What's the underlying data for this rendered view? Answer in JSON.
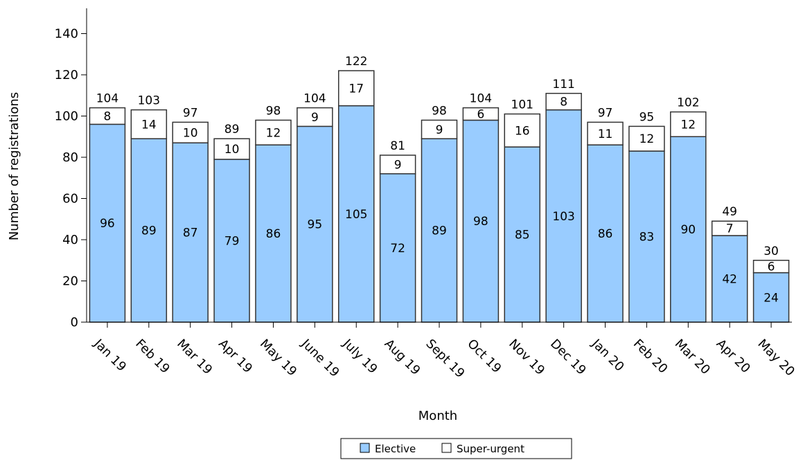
{
  "chart_data": {
    "type": "bar",
    "stacked": true,
    "title": "",
    "xlabel": "Month",
    "ylabel": "Number of registrations",
    "ylim": [
      0,
      150
    ],
    "yticks": [
      0,
      20,
      40,
      60,
      80,
      100,
      120,
      140
    ],
    "grid": false,
    "legend_position": "bottom",
    "categories": [
      "Jan 19",
      "Feb 19",
      "Mar 19",
      "Apr 19",
      "May 19",
      "June 19",
      "July 19",
      "Aug 19",
      "Sept 19",
      "Oct 19",
      "Nov 19",
      "Dec 19",
      "Jan 20",
      "Feb 20",
      "Mar 20",
      "Apr 20",
      "May 20"
    ],
    "series": [
      {
        "name": "Elective",
        "color": "#99ccff",
        "values": [
          96,
          89,
          87,
          79,
          86,
          95,
          105,
          72,
          89,
          98,
          85,
          103,
          86,
          83,
          90,
          42,
          24
        ]
      },
      {
        "name": "Super-urgent",
        "color": "#ffffff",
        "values": [
          8,
          14,
          10,
          10,
          12,
          9,
          17,
          9,
          9,
          6,
          16,
          8,
          11,
          12,
          12,
          7,
          6
        ]
      }
    ],
    "totals": [
      104,
      103,
      97,
      89,
      98,
      104,
      122,
      81,
      98,
      104,
      101,
      111,
      97,
      95,
      102,
      49,
      30
    ]
  }
}
